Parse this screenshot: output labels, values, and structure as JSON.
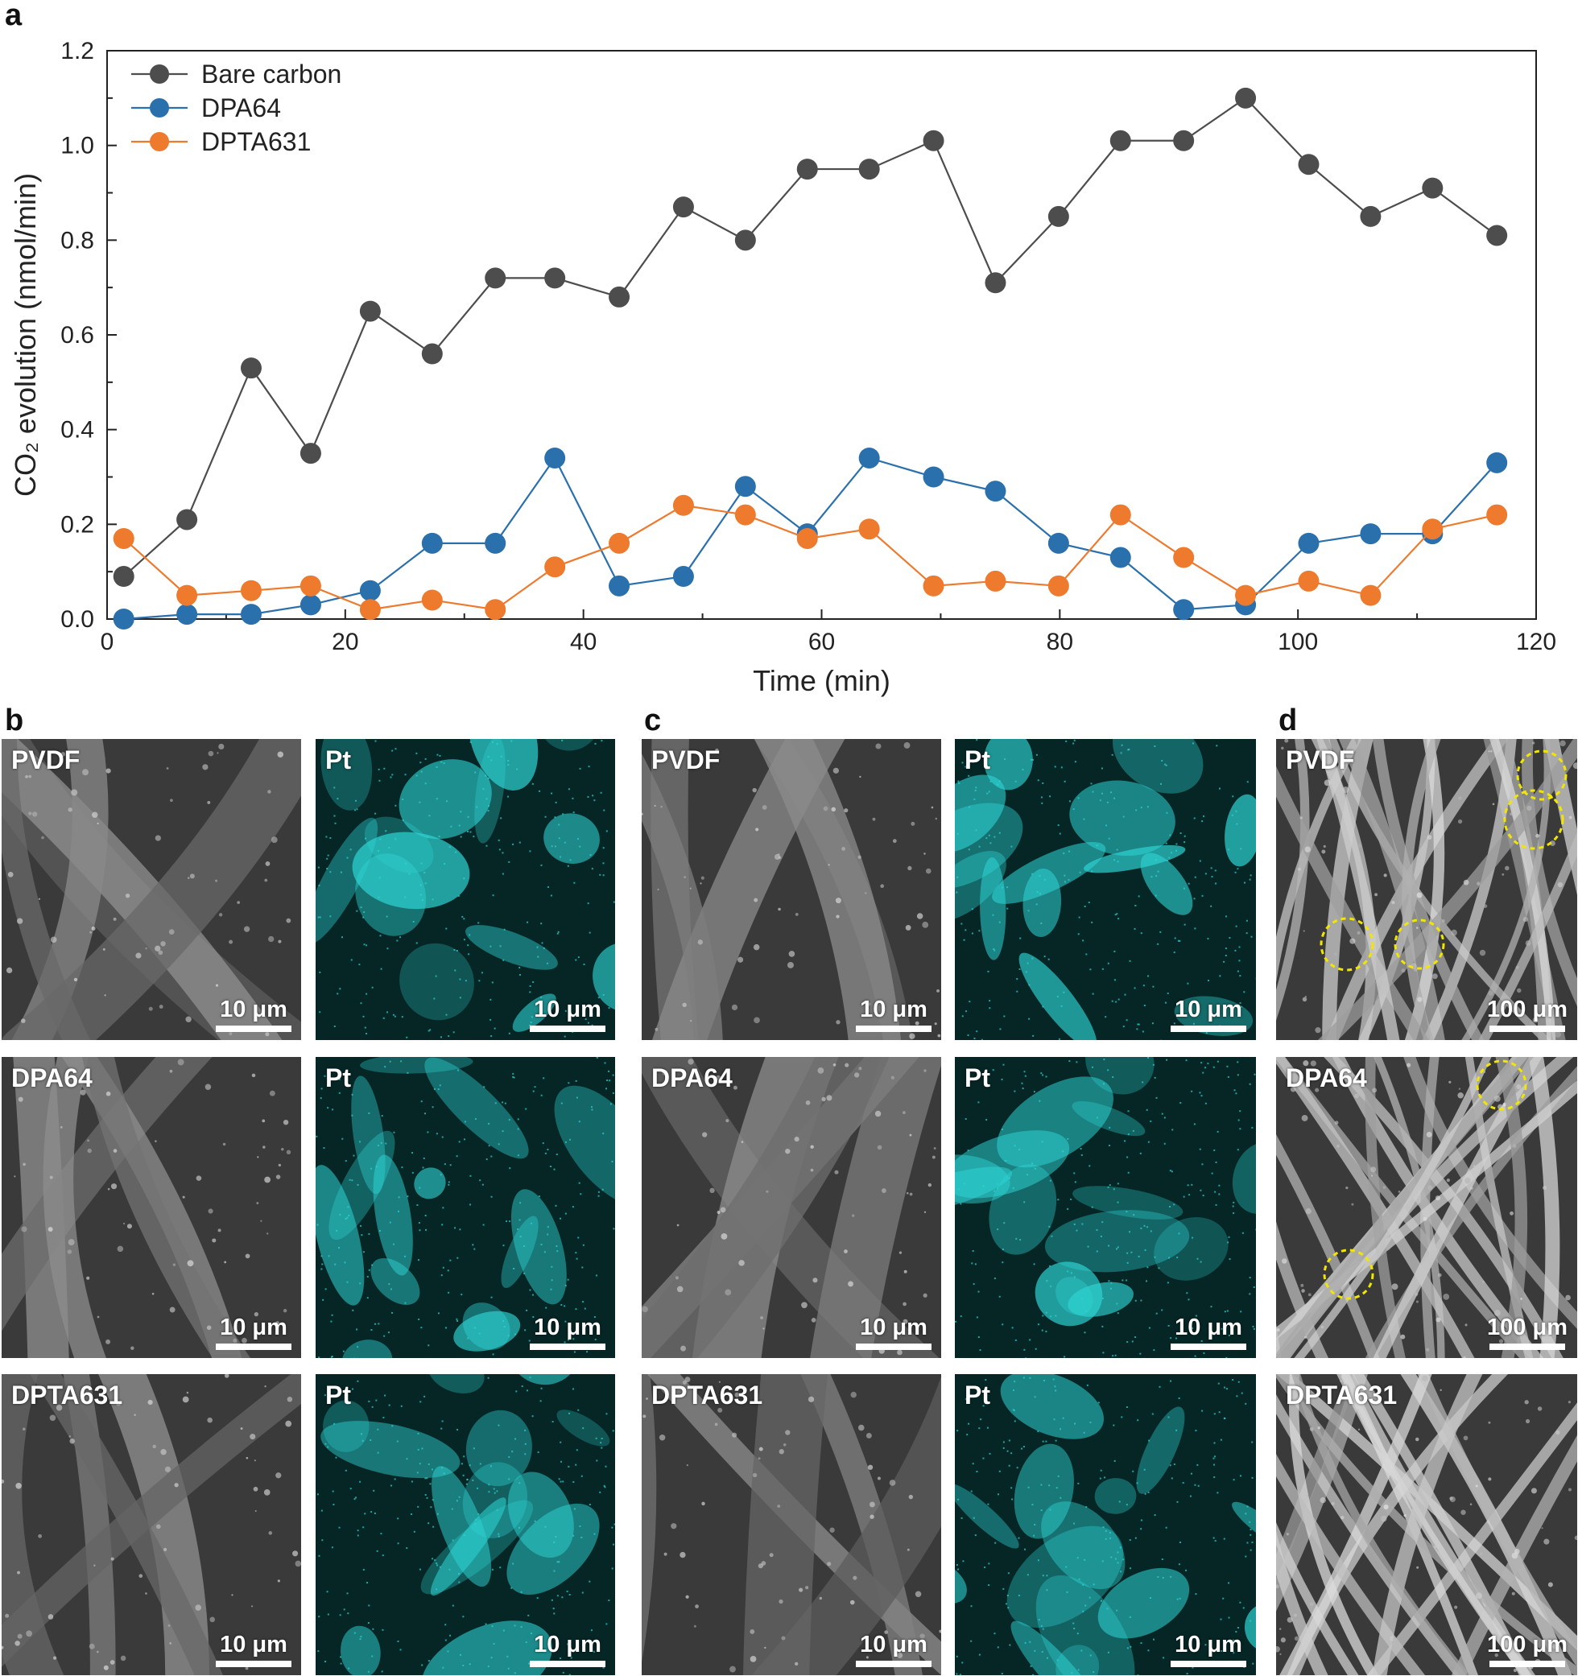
{
  "panel_letters": {
    "a": "a",
    "b": "b",
    "c": "c",
    "d": "d"
  },
  "chart_data": {
    "type": "line",
    "xlabel": "Time (min)",
    "ylabel": "CO₂ evolution (nmol/min)",
    "xlim": [
      0,
      120
    ],
    "ylim": [
      0,
      1.2
    ],
    "xticks": [
      0,
      20,
      40,
      60,
      80,
      100,
      120
    ],
    "yticks": [
      0.0,
      0.2,
      0.4,
      0.6,
      0.8,
      1.0,
      1.2
    ],
    "ytick_labels": [
      "0.0",
      "0.2",
      "0.4",
      "0.6",
      "0.8",
      "1.0",
      "1.2"
    ],
    "legend_position": "top-left",
    "grid": false,
    "x": [
      1.4,
      6.7,
      12.1,
      17.1,
      22.1,
      27.3,
      32.6,
      37.6,
      43.0,
      48.4,
      53.6,
      58.8,
      64.0,
      69.4,
      74.6,
      79.9,
      85.1,
      90.4,
      95.6,
      100.9,
      106.1,
      111.3,
      116.7
    ],
    "series": [
      {
        "name": "Bare carbon",
        "color": "#4d4d4d",
        "values": [
          0.09,
          0.21,
          0.53,
          0.35,
          0.65,
          0.56,
          0.72,
          0.72,
          0.68,
          0.87,
          0.8,
          0.95,
          0.95,
          1.01,
          0.71,
          0.85,
          1.01,
          1.01,
          1.1,
          0.96,
          0.85,
          0.91,
          0.81
        ]
      },
      {
        "name": "DPA64",
        "color": "#2a70ad",
        "values": [
          0.0,
          0.01,
          0.01,
          0.03,
          0.06,
          0.16,
          0.16,
          0.34,
          0.07,
          0.09,
          0.28,
          0.18,
          0.34,
          0.3,
          0.27,
          0.16,
          0.13,
          0.02,
          0.03,
          0.16,
          0.18,
          0.18,
          0.33
        ]
      },
      {
        "name": "DPTA631",
        "color": "#ee7a2e",
        "values": [
          0.17,
          0.05,
          0.06,
          0.07,
          0.02,
          0.04,
          0.02,
          0.11,
          0.16,
          0.24,
          0.22,
          0.17,
          0.19,
          0.07,
          0.08,
          0.07,
          0.22,
          0.13,
          0.05,
          0.08,
          0.05,
          0.19,
          0.22
        ]
      }
    ]
  },
  "images": [
    {
      "id": "b1",
      "kind": "sem",
      "label": "PVDF",
      "scalebar": "10 μm"
    },
    {
      "id": "b2",
      "kind": "pt",
      "label": "Pt",
      "scalebar": "10 μm"
    },
    {
      "id": "c1",
      "kind": "sem",
      "label": "PVDF",
      "scalebar": "10 μm"
    },
    {
      "id": "c2",
      "kind": "pt",
      "label": "Pt",
      "scalebar": "10 μm"
    },
    {
      "id": "d1",
      "kind": "sem",
      "label": "PVDF",
      "scalebar": "100 μm"
    },
    {
      "id": "b3",
      "kind": "sem",
      "label": "DPA64",
      "scalebar": "10 μm"
    },
    {
      "id": "b4",
      "kind": "pt",
      "label": "Pt",
      "scalebar": "10 μm"
    },
    {
      "id": "c3",
      "kind": "sem",
      "label": "DPA64",
      "scalebar": "10 μm"
    },
    {
      "id": "c4",
      "kind": "pt",
      "label": "Pt",
      "scalebar": "10 μm"
    },
    {
      "id": "d2",
      "kind": "sem",
      "label": "DPA64",
      "scalebar": "100 μm"
    },
    {
      "id": "b5",
      "kind": "sem",
      "label": "DPTA631",
      "scalebar": "10 μm"
    },
    {
      "id": "b6",
      "kind": "pt",
      "label": "Pt",
      "scalebar": "10 μm"
    },
    {
      "id": "c5",
      "kind": "sem",
      "label": "DPTA631",
      "scalebar": "10 μm"
    },
    {
      "id": "c6",
      "kind": "pt",
      "label": "Pt",
      "scalebar": "10 μm"
    },
    {
      "id": "d3",
      "kind": "sem",
      "label": "DPTA631",
      "scalebar": "100 μm"
    }
  ],
  "colors": {
    "pt_map": "#2fd6d6",
    "sem_background": "#3a3a3a",
    "highlight_circle": "#f2e600"
  }
}
